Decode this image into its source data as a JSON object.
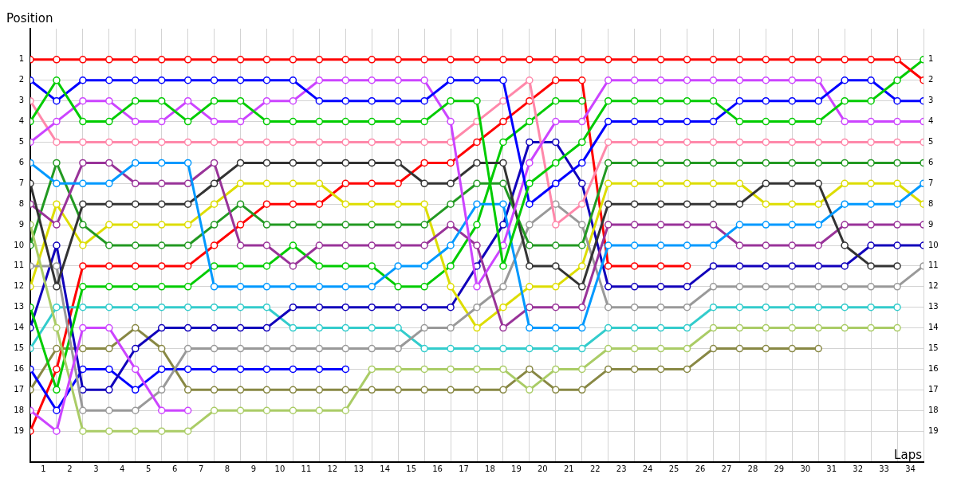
{
  "chart_data": {
    "type": "line",
    "xlabel": "Laps",
    "ylabel": "Position",
    "x": [
      0,
      1,
      2,
      3,
      4,
      5,
      6,
      7,
      8,
      9,
      10,
      11,
      12,
      13,
      14,
      15,
      16,
      17,
      18,
      19,
      20,
      21,
      22,
      23,
      24,
      25,
      26,
      27,
      28,
      29,
      30,
      31,
      32,
      33,
      34
    ],
    "xlim": [
      0,
      34
    ],
    "xticks": [
      {
        "value": 0,
        "label": null
      },
      {
        "value": 0.5,
        "label": "1"
      },
      {
        "value": 1,
        "label": null
      },
      {
        "value": 1.5,
        "label": "2"
      },
      {
        "value": 2,
        "label": null
      },
      {
        "value": 2.5,
        "label": "3"
      },
      {
        "value": 3,
        "label": null
      },
      {
        "value": 3.5,
        "label": "4"
      },
      {
        "value": 4,
        "label": null
      },
      {
        "value": 4.5,
        "label": "5"
      },
      {
        "value": 5,
        "label": null
      },
      {
        "value": 5.5,
        "label": "6"
      },
      {
        "value": 6,
        "label": null
      },
      {
        "value": 6.5,
        "label": "7"
      },
      {
        "value": 7,
        "label": null
      },
      {
        "value": 7.5,
        "label": "8"
      },
      {
        "value": 8,
        "label": null
      },
      {
        "value": 8.5,
        "label": "9"
      },
      {
        "value": 9,
        "label": null
      },
      {
        "value": 9.5,
        "label": "10"
      },
      {
        "value": 10,
        "label": null
      },
      {
        "value": 10.5,
        "label": "11"
      },
      {
        "value": 11,
        "label": null
      },
      {
        "value": 11.5,
        "label": "12"
      },
      {
        "value": 12,
        "label": null
      },
      {
        "value": 12.5,
        "label": "13"
      },
      {
        "value": 13,
        "label": null
      },
      {
        "value": 13.5,
        "label": "14"
      },
      {
        "value": 14,
        "label": null
      },
      {
        "value": 14.5,
        "label": "15"
      },
      {
        "value": 15,
        "label": null
      },
      {
        "value": 15.5,
        "label": "16"
      },
      {
        "value": 16,
        "label": null
      },
      {
        "value": 16.5,
        "label": "17"
      },
      {
        "value": 17,
        "label": null
      },
      {
        "value": 17.5,
        "label": "18"
      },
      {
        "value": 18,
        "label": null
      },
      {
        "value": 18.5,
        "label": "19"
      },
      {
        "value": 19,
        "label": null
      },
      {
        "value": 19.5,
        "label": "20"
      },
      {
        "value": 20,
        "label": null
      },
      {
        "value": 20.5,
        "label": "21"
      },
      {
        "value": 21,
        "label": null
      },
      {
        "value": 21.5,
        "label": "22"
      },
      {
        "value": 22,
        "label": null
      },
      {
        "value": 22.5,
        "label": "23"
      },
      {
        "value": 23,
        "label": null
      },
      {
        "value": 23.5,
        "label": "24"
      },
      {
        "value": 24,
        "label": null
      },
      {
        "value": 24.5,
        "label": "25"
      },
      {
        "value": 25,
        "label": null
      },
      {
        "value": 25.5,
        "label": "26"
      },
      {
        "value": 26,
        "label": null
      },
      {
        "value": 26.5,
        "label": "27"
      },
      {
        "value": 27,
        "label": null
      },
      {
        "value": 27.5,
        "label": "28"
      },
      {
        "value": 28,
        "label": null
      },
      {
        "value": 28.5,
        "label": "29"
      },
      {
        "value": 29,
        "label": null
      },
      {
        "value": 29.5,
        "label": "30"
      },
      {
        "value": 30,
        "label": null
      },
      {
        "value": 30.5,
        "label": "31"
      },
      {
        "value": 31,
        "label": null
      },
      {
        "value": 31.5,
        "label": "32"
      },
      {
        "value": 32,
        "label": null
      },
      {
        "value": 32.5,
        "label": "33"
      },
      {
        "value": 33,
        "label": null
      },
      {
        "value": 33.5,
        "label": "34"
      },
      {
        "value": 34,
        "label": null
      }
    ],
    "ylim": [
      20.5,
      -0.5
    ],
    "yticks": [
      1,
      2,
      3,
      4,
      5,
      6,
      7,
      8,
      9,
      10,
      11,
      12,
      13,
      14,
      15,
      16,
      17,
      18,
      19
    ],
    "y2lim": [
      20.5,
      -0.5
    ],
    "y2ticks": [
      1,
      2,
      3,
      4,
      5,
      6,
      7,
      8,
      9,
      10,
      11,
      12,
      13,
      14,
      15,
      16,
      17,
      18,
      19
    ],
    "grid": true,
    "legend": false,
    "marker": "circle",
    "line_style": "solid",
    "series": [
      {
        "color": "#ff0000",
        "values": [
          1,
          1,
          1,
          1,
          1,
          1,
          1,
          1,
          1,
          1,
          1,
          1,
          1,
          1,
          1,
          1,
          1,
          1,
          1,
          1,
          1,
          1,
          1,
          1,
          1,
          1,
          1,
          1,
          1,
          1,
          1,
          1,
          1,
          1,
          2
        ]
      },
      {
        "color": "#00cc00",
        "values": [
          4,
          2,
          4,
          4,
          3,
          3,
          4,
          3,
          3,
          4,
          4,
          4,
          4,
          4,
          4,
          4,
          3,
          3,
          11,
          7,
          6,
          5,
          3,
          3,
          3,
          3,
          3,
          4,
          4,
          4,
          4,
          3,
          3,
          2,
          1
        ]
      },
      {
        "color": "#0000ff",
        "values": [
          2,
          3,
          2,
          2,
          2,
          2,
          2,
          2,
          2,
          2,
          2,
          3,
          3,
          3,
          3,
          3,
          2,
          2,
          2,
          8,
          7,
          6,
          4,
          4,
          4,
          4,
          4,
          3,
          3,
          3,
          3,
          2,
          2,
          3,
          3
        ]
      },
      {
        "color": "#cc44ff",
        "values": [
          5,
          4,
          3,
          3,
          4,
          4,
          3,
          4,
          4,
          3,
          3,
          2,
          2,
          2,
          2,
          2,
          4,
          12,
          10,
          6,
          4,
          4,
          2,
          2,
          2,
          2,
          2,
          2,
          2,
          2,
          2,
          4,
          4,
          4,
          4
        ]
      },
      {
        "color": "#cc44ff",
        "values": [
          18,
          19,
          14,
          14,
          16,
          18,
          18,
          null,
          null,
          null,
          null,
          null,
          null,
          null,
          null,
          null,
          null,
          null,
          null,
          null,
          null,
          null,
          null,
          null,
          null,
          null,
          null,
          null,
          null,
          null,
          null,
          null,
          null,
          null,
          null
        ]
      },
      {
        "color": "#ff88aa",
        "values": [
          3,
          5,
          5,
          5,
          5,
          5,
          5,
          5,
          5,
          5,
          5,
          5,
          5,
          5,
          5,
          5,
          5,
          4,
          3,
          2,
          9,
          8,
          5,
          5,
          5,
          5,
          5,
          5,
          5,
          5,
          5,
          5,
          5,
          5,
          5
        ]
      },
      {
        "color": "#0099ff",
        "values": [
          6,
          7,
          7,
          7,
          6,
          6,
          6,
          12,
          12,
          12,
          12,
          12,
          12,
          12,
          11,
          11,
          10,
          8,
          8,
          14,
          14,
          14,
          10,
          10,
          10,
          10,
          10,
          9,
          9,
          9,
          9,
          8,
          8,
          8,
          7
        ]
      },
      {
        "color": "#333333",
        "values": [
          7,
          12,
          8,
          8,
          8,
          8,
          8,
          7,
          6,
          6,
          6,
          6,
          6,
          6,
          6,
          7,
          7,
          6,
          6,
          11,
          11,
          12,
          8,
          8,
          8,
          8,
          8,
          8,
          7,
          7,
          7,
          10,
          11,
          11,
          null
        ]
      },
      {
        "color": "#993399",
        "values": [
          8,
          9,
          6,
          6,
          7,
          7,
          7,
          6,
          10,
          10,
          11,
          10,
          10,
          10,
          10,
          10,
          9,
          10,
          14,
          13,
          13,
          13,
          9,
          9,
          9,
          9,
          9,
          10,
          10,
          10,
          10,
          9,
          9,
          9,
          9
        ]
      },
      {
        "color": "#aacc66",
        "values": [
          9,
          14,
          19,
          19,
          19,
          19,
          19,
          18,
          18,
          18,
          18,
          18,
          18,
          16,
          16,
          16,
          16,
          16,
          16,
          17,
          16,
          16,
          15,
          15,
          15,
          15,
          14,
          14,
          14,
          14,
          14,
          14,
          14,
          14,
          null
        ]
      },
      {
        "color": "#229922",
        "values": [
          10,
          6,
          9,
          10,
          10,
          10,
          10,
          9,
          8,
          9,
          9,
          9,
          9,
          9,
          9,
          9,
          8,
          7,
          7,
          10,
          10,
          10,
          6,
          6,
          6,
          6,
          6,
          6,
          6,
          6,
          6,
          6,
          6,
          6,
          6
        ]
      },
      {
        "color": "#999999",
        "values": [
          11,
          11,
          18,
          18,
          18,
          17,
          15,
          15,
          15,
          15,
          15,
          15,
          15,
          15,
          15,
          14,
          14,
          13,
          12,
          9,
          8,
          9,
          13,
          13,
          13,
          13,
          12,
          12,
          12,
          12,
          12,
          12,
          12,
          12,
          11
        ]
      },
      {
        "color": "#dddd00",
        "values": [
          12,
          8,
          10,
          9,
          9,
          9,
          9,
          8,
          7,
          7,
          7,
          7,
          8,
          8,
          8,
          8,
          12,
          14,
          13,
          12,
          12,
          11,
          7,
          7,
          7,
          7,
          7,
          7,
          8,
          8,
          8,
          7,
          7,
          7,
          8
        ]
      },
      {
        "color": "#00cc00",
        "values": [
          13,
          17,
          12,
          12,
          12,
          12,
          12,
          11,
          11,
          11,
          10,
          11,
          11,
          11,
          12,
          12,
          11,
          9,
          5,
          4,
          3,
          3,
          null,
          null,
          null,
          null,
          null,
          null,
          null,
          null,
          null,
          null,
          null,
          null,
          null
        ]
      },
      {
        "color": "#1100bb",
        "values": [
          14,
          10,
          17,
          17,
          15,
          14,
          14,
          14,
          14,
          14,
          13,
          13,
          13,
          13,
          13,
          13,
          13,
          11,
          9,
          5,
          5,
          7,
          12,
          12,
          12,
          12,
          11,
          11,
          11,
          11,
          11,
          11,
          10,
          10,
          10
        ]
      },
      {
        "color": "#33cccc",
        "values": [
          15,
          13,
          13,
          13,
          13,
          13,
          13,
          13,
          13,
          13,
          14,
          14,
          14,
          14,
          14,
          15,
          15,
          15,
          15,
          15,
          15,
          15,
          14,
          14,
          14,
          14,
          13,
          13,
          13,
          13,
          13,
          13,
          13,
          13,
          null
        ]
      },
      {
        "color": "#0000ff",
        "values": [
          16,
          18,
          16,
          16,
          17,
          16,
          16,
          16,
          16,
          16,
          16,
          16,
          16,
          null,
          null,
          null,
          null,
          null,
          null,
          null,
          null,
          null,
          null,
          null,
          null,
          null,
          null,
          null,
          null,
          null,
          null,
          null,
          null,
          null,
          null
        ]
      },
      {
        "color": "#888844",
        "values": [
          17,
          15,
          15,
          15,
          14,
          15,
          17,
          17,
          17,
          17,
          17,
          17,
          17,
          17,
          17,
          17,
          17,
          17,
          17,
          16,
          17,
          17,
          16,
          16,
          16,
          16,
          15,
          15,
          15,
          15,
          15,
          null,
          null,
          null,
          null
        ]
      },
      {
        "color": "#ff0000",
        "values": [
          19,
          16,
          11,
          11,
          11,
          11,
          11,
          10,
          9,
          8,
          8,
          8,
          7,
          7,
          7,
          6,
          6,
          5,
          4,
          3,
          2,
          2,
          11,
          11,
          11,
          11,
          null,
          null,
          null,
          null,
          null,
          null,
          null,
          null,
          null
        ]
      }
    ]
  }
}
